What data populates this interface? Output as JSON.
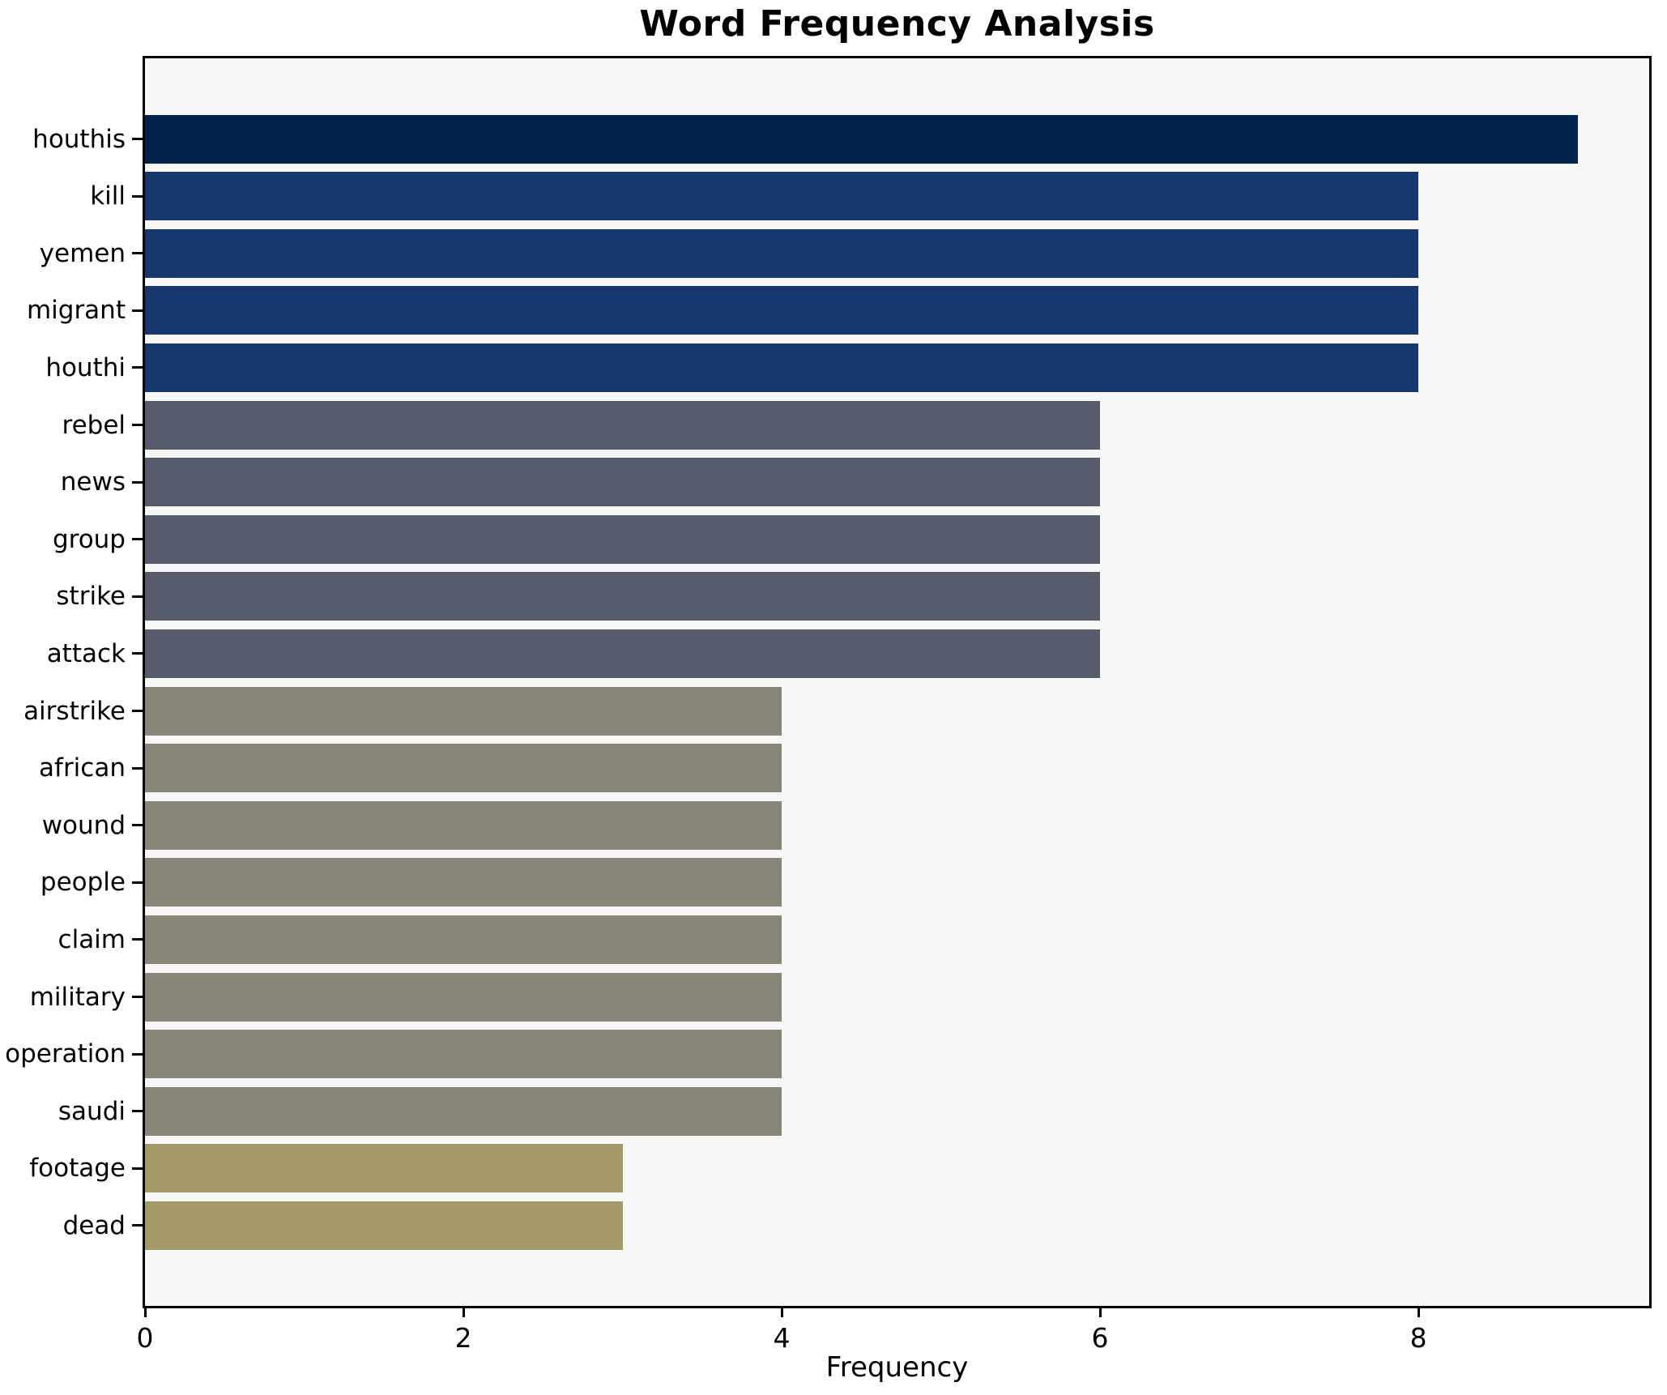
{
  "chart_data": {
    "type": "bar",
    "orientation": "horizontal",
    "title": "Word Frequency Analysis",
    "xlabel": "Frequency",
    "ylabel": "",
    "xlim": [
      0,
      9.45
    ],
    "xticks": [
      "0",
      "2",
      "4",
      "6",
      "8"
    ],
    "grid": false,
    "legend": "none",
    "categories": [
      "houthis",
      "kill",
      "yemen",
      "migrant",
      "houthi",
      "rebel",
      "news",
      "group",
      "strike",
      "attack",
      "airstrike",
      "african",
      "wound",
      "people",
      "claim",
      "military",
      "operation",
      "saudi",
      "footage",
      "dead"
    ],
    "values": [
      9,
      8,
      8,
      8,
      8,
      6,
      6,
      6,
      6,
      6,
      4,
      4,
      4,
      4,
      4,
      4,
      4,
      4,
      3,
      3
    ],
    "bar_colors": [
      "#02234e",
      "#17386e",
      "#17386e",
      "#17386e",
      "#17386e",
      "#565c6b",
      "#565c6b",
      "#565c6b",
      "#565c6b",
      "#565c6b",
      "#898677",
      "#898677",
      "#898677",
      "#898677",
      "#898677",
      "#898677",
      "#898677",
      "#898677",
      "#a49969",
      "#a49969"
    ],
    "colors": {
      "figure_bg": "#ffffff",
      "plot_bg": "#f7f7f8",
      "axis": "#000000",
      "text": "#000000"
    }
  }
}
